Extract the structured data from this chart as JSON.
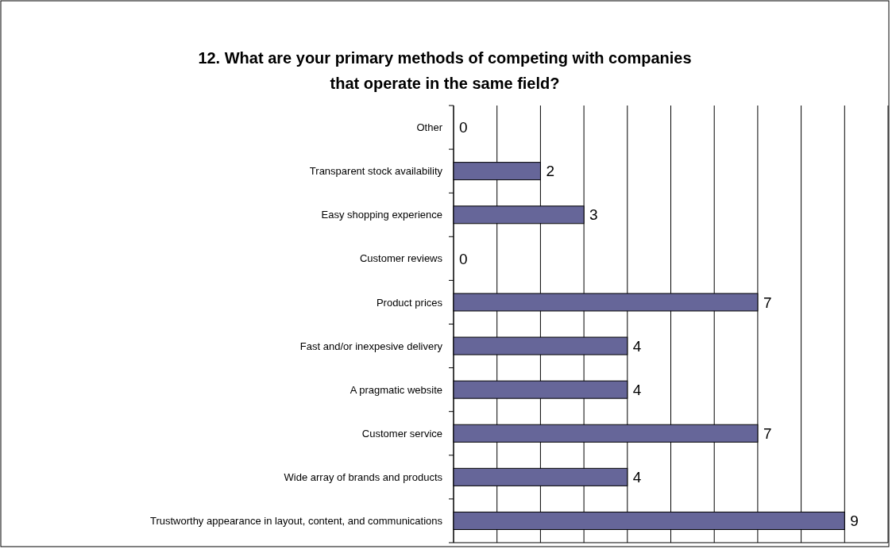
{
  "chart_data": {
    "type": "bar",
    "orientation": "horizontal",
    "title": "12. What are your primary methods of competing with companies\nthat operate in the same field?",
    "categories": [
      "Other",
      "Transparent stock availability",
      "Easy shopping experience",
      "Customer reviews",
      "Product prices",
      "Fast and/or inexpesive delivery",
      "A pragmatic website",
      "Customer service",
      "Wide array of brands and products",
      "Trustworthy appearance in layout, content, and communications"
    ],
    "values": [
      0,
      2,
      3,
      0,
      7,
      4,
      4,
      7,
      4,
      9
    ],
    "color": "#666699",
    "xlim": [
      0,
      10
    ],
    "xticks": [
      {
        "value": 0,
        "label": null
      },
      {
        "value": 1,
        "label": null
      },
      {
        "value": 2,
        "label": null
      },
      {
        "value": 3,
        "label": null
      },
      {
        "value": 4,
        "label": null
      },
      {
        "value": 5,
        "label": null
      },
      {
        "value": 6,
        "label": null
      },
      {
        "value": 7,
        "label": null
      },
      {
        "value": 8,
        "label": null
      },
      {
        "value": 9,
        "label": null
      },
      {
        "value": 10,
        "label": null
      }
    ],
    "grid": "x",
    "tick_labels": "y",
    "data_labels": true
  }
}
